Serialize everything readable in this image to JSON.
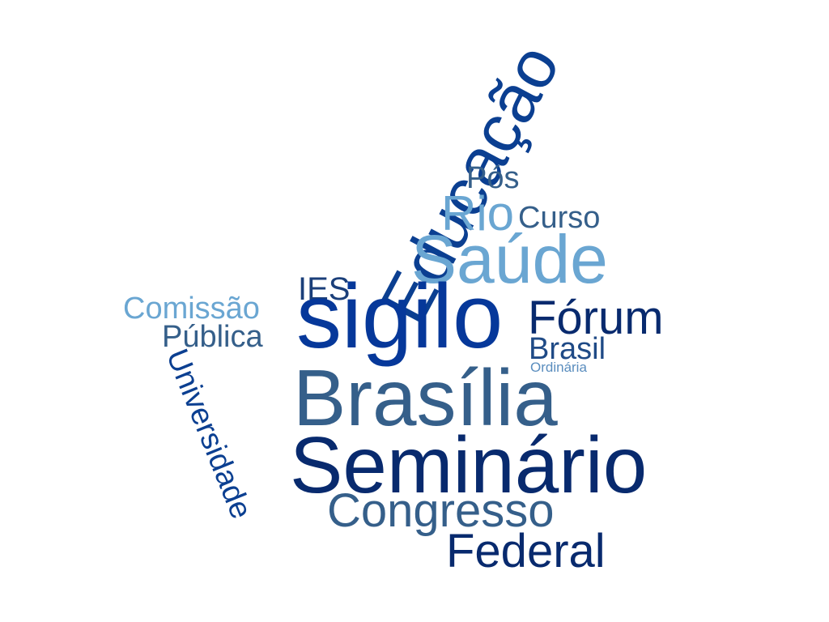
{
  "words": {
    "educacao": {
      "text": "Educação",
      "color": "#0b3f91"
    },
    "pos": {
      "text": "Pós",
      "color": "#355f8a"
    },
    "rio": {
      "text": "Rio",
      "color": "#6aa6d2"
    },
    "curso": {
      "text": "Curso",
      "color": "#355f8a"
    },
    "saude": {
      "text": "Saúde",
      "color": "#6aa6d2"
    },
    "ies": {
      "text": "IES",
      "color": "#1b3f7a"
    },
    "sigilo": {
      "text": "sigilo",
      "color": "#06389a"
    },
    "forum": {
      "text": "Fórum",
      "color": "#082a6e"
    },
    "brasil": {
      "text": "Brasil",
      "color": "#1f4a86"
    },
    "ordinaria": {
      "text": "Ordinária",
      "color": "#5a8dbe"
    },
    "comissao": {
      "text": "Comissão",
      "color": "#6aa6d2"
    },
    "publica": {
      "text": "Pública",
      "color": "#355f8a"
    },
    "universidade": {
      "text": "Universidade",
      "color": "#0b3f91"
    },
    "brasilia": {
      "text": "Brasília",
      "color": "#355f8a"
    },
    "seminario": {
      "text": "Seminário",
      "color": "#082a6e"
    },
    "congresso": {
      "text": "Congresso",
      "color": "#355f8a"
    },
    "federal": {
      "text": "Federal",
      "color": "#082a6e"
    }
  }
}
